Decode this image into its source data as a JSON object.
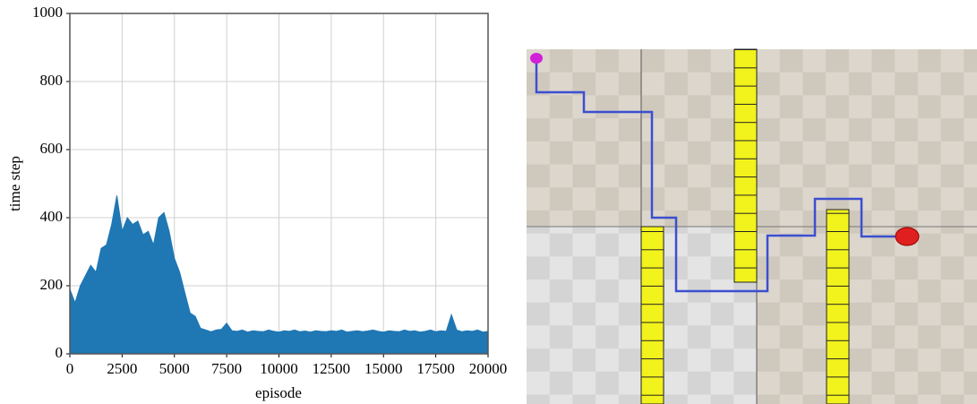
{
  "chart_data": {
    "type": "area",
    "color": "#1f77b4",
    "x": [
      0,
      250,
      500,
      750,
      1000,
      1250,
      1500,
      1750,
      2000,
      2250,
      2500,
      2750,
      3000,
      3250,
      3500,
      3750,
      4000,
      4250,
      4500,
      4750,
      5000,
      5250,
      5500,
      5750,
      6000,
      6250,
      6500,
      6750,
      7000,
      7250,
      7500,
      7750,
      8000,
      8250,
      8500,
      8750,
      9000,
      9250,
      9500,
      9750,
      10000,
      10250,
      10500,
      10750,
      11000,
      11250,
      11500,
      11750,
      12000,
      12250,
      12500,
      12750,
      13000,
      13250,
      13500,
      13750,
      14000,
      14250,
      14500,
      14750,
      15000,
      15250,
      15500,
      15750,
      16000,
      16250,
      16500,
      16750,
      17000,
      17250,
      17500,
      17750,
      18000,
      18250,
      18500,
      18750,
      19000,
      19250,
      19500,
      19750,
      20000
    ],
    "values": [
      190,
      150,
      200,
      230,
      260,
      240,
      310,
      320,
      380,
      465,
      360,
      400,
      380,
      390,
      350,
      360,
      320,
      400,
      415,
      360,
      280,
      240,
      180,
      120,
      110,
      75,
      70,
      65,
      70,
      72,
      90,
      68,
      66,
      70,
      64,
      68,
      66,
      65,
      70,
      66,
      64,
      68,
      66,
      70,
      65,
      67,
      64,
      68,
      66,
      65,
      68,
      66,
      70,
      64,
      66,
      68,
      65,
      67,
      70,
      66,
      64,
      68,
      66,
      65,
      70,
      66,
      68,
      64,
      66,
      70,
      65,
      68,
      66,
      115,
      70,
      65,
      68,
      66,
      70,
      64,
      66
    ],
    "xlim": [
      0,
      20000
    ],
    "ylim": [
      0,
      1000
    ],
    "xticks": [
      0,
      2500,
      5000,
      7500,
      10000,
      12500,
      15000,
      17500,
      20000
    ],
    "yticks": [
      0,
      200,
      400,
      600,
      800,
      1000
    ],
    "xlabel": "episode",
    "ylabel": "time step",
    "grid": true
  }
}
